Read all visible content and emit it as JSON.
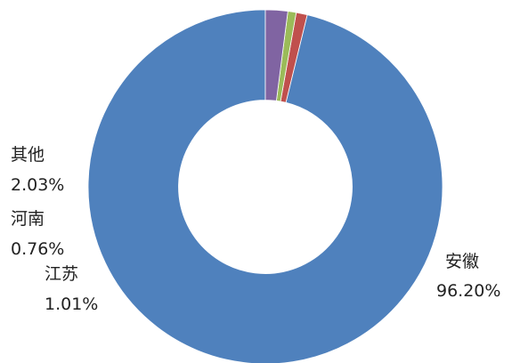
{
  "chart_data": {
    "type": "pie",
    "variant": "donut",
    "start_angle_deg": 270,
    "direction": "counterclockwise",
    "inner_radius_ratio": 0.49,
    "slices": [
      {
        "category": "安徽",
        "value": 96.2,
        "label": "96.20%",
        "color": "#4F81BD"
      },
      {
        "category": "江苏",
        "value": 1.01,
        "label": "1.01%",
        "color": "#C0504D"
      },
      {
        "category": "河南",
        "value": 0.76,
        "label": "0.76%",
        "color": "#9BBB59"
      },
      {
        "category": "其他",
        "value": 2.03,
        "label": "2.03%",
        "color": "#8064A2"
      }
    ],
    "data_labels": "category, percent",
    "legend": "none"
  }
}
